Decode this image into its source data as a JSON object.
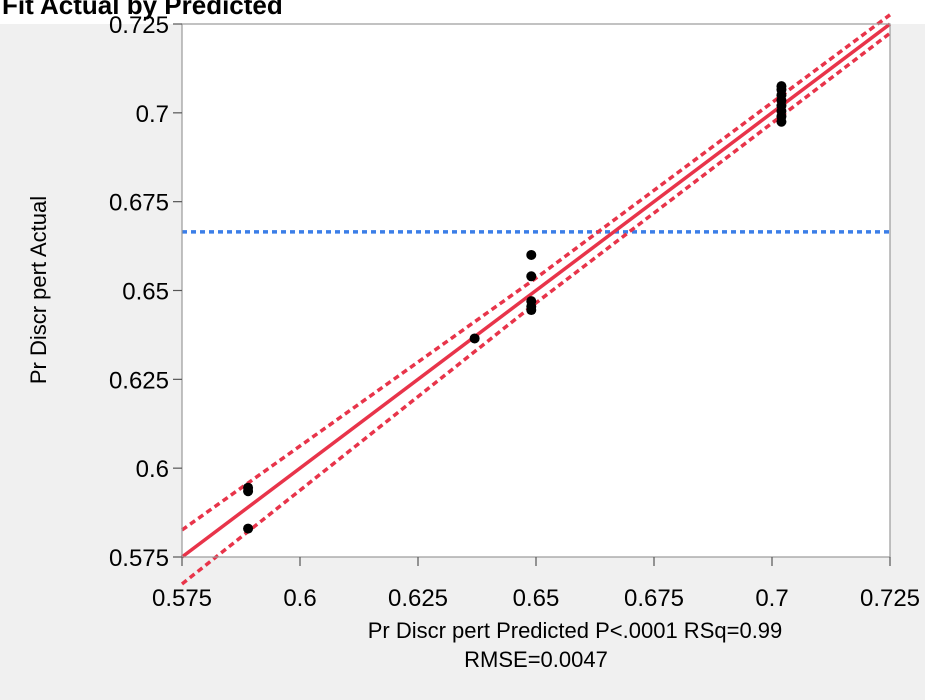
{
  "page": {
    "title": "Fit Actual by Predicted"
  },
  "chart_data": {
    "type": "scatter",
    "xlabel": "Pr Discr pert Predicted P<.0001 RSq=0.99",
    "xlabel_line2": "RMSE=0.0047",
    "ylabel": "Pr Discr pert Actual",
    "xlim": [
      0.575,
      0.725
    ],
    "ylim": [
      0.575,
      0.725
    ],
    "x_ticks": [
      "0.575",
      "0.6",
      "0.625",
      "0.65",
      "0.675",
      "0.7",
      "0.725"
    ],
    "y_ticks": [
      "0.725",
      "0.7",
      "0.675",
      "0.65",
      "0.625",
      "0.6",
      "0.575"
    ],
    "grid": false,
    "points": [
      {
        "x": 0.589,
        "y": 0.5935
      },
      {
        "x": 0.589,
        "y": 0.5945
      },
      {
        "x": 0.589,
        "y": 0.583
      },
      {
        "x": 0.637,
        "y": 0.6365
      },
      {
        "x": 0.649,
        "y": 0.66
      },
      {
        "x": 0.649,
        "y": 0.654
      },
      {
        "x": 0.649,
        "y": 0.647
      },
      {
        "x": 0.649,
        "y": 0.6455
      },
      {
        "x": 0.649,
        "y": 0.6445
      },
      {
        "x": 0.702,
        "y": 0.7075
      },
      {
        "x": 0.702,
        "y": 0.7065
      },
      {
        "x": 0.702,
        "y": 0.705
      },
      {
        "x": 0.702,
        "y": 0.7035
      },
      {
        "x": 0.702,
        "y": 0.702
      },
      {
        "x": 0.702,
        "y": 0.7005
      },
      {
        "x": 0.702,
        "y": 0.699
      },
      {
        "x": 0.702,
        "y": 0.6975
      }
    ],
    "fit_line": {
      "x": [
        0.575,
        0.725
      ],
      "y": [
        0.575,
        0.725
      ],
      "color": "#e8344a"
    },
    "confidence_upper": {
      "x": [
        0.575,
        0.65,
        0.725
      ],
      "y": [
        0.5826,
        0.6535,
        0.7276
      ],
      "color": "#e8344a"
    },
    "confidence_lower": {
      "x": [
        0.575,
        0.65,
        0.725
      ],
      "y": [
        0.5674,
        0.6465,
        0.7224
      ],
      "color": "#e8344a"
    },
    "mean_line": {
      "y": 0.6665,
      "color": "#3b7ee8"
    },
    "point_color": "#000000"
  }
}
